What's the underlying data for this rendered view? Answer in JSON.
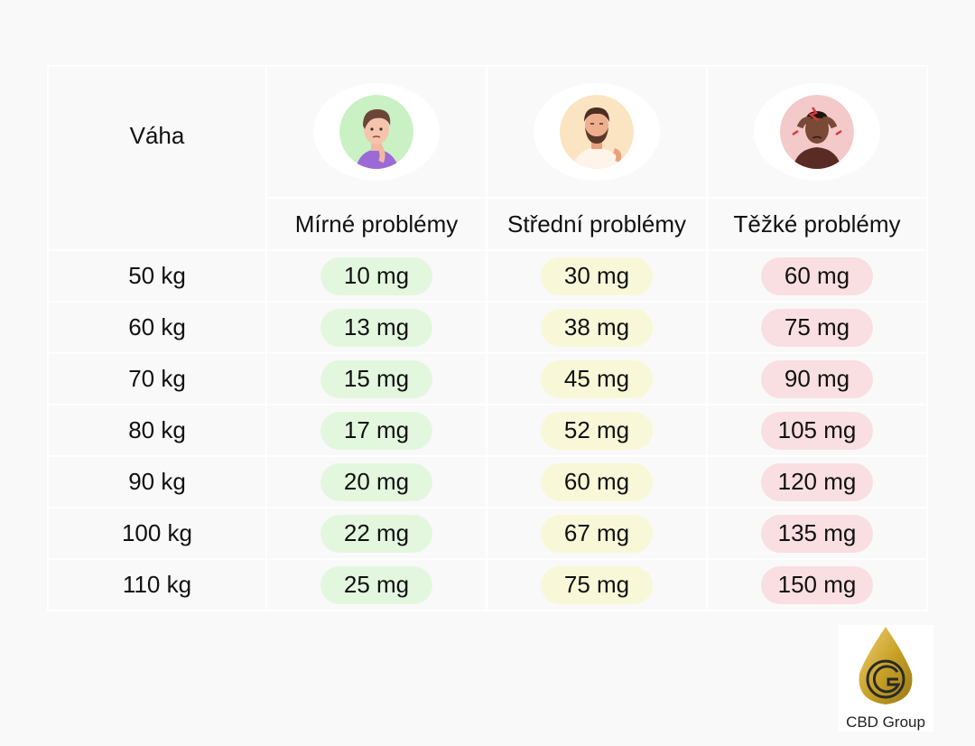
{
  "header": {
    "weight_label": "Váha",
    "columns": [
      {
        "label": "Mírné problémy",
        "icon": "mild-person-icon",
        "accent": "#e3f7df"
      },
      {
        "label": "Střední problémy",
        "icon": "bearded-man-icon",
        "accent": "#f8f8d8"
      },
      {
        "label": "Těžké problémy",
        "icon": "headache-person-icon",
        "accent": "#f9dfe2"
      }
    ]
  },
  "rows": [
    {
      "weight": "50 kg",
      "mild": "10 mg",
      "medium": "30 mg",
      "severe": "60 mg"
    },
    {
      "weight": "60 kg",
      "mild": "13 mg",
      "medium": "38 mg",
      "severe": "75 mg"
    },
    {
      "weight": "70 kg",
      "mild": "15 mg",
      "medium": "45 mg",
      "severe": "90 mg"
    },
    {
      "weight": "80 kg",
      "mild": "17 mg",
      "medium": "52 mg",
      "severe": "105 mg"
    },
    {
      "weight": "90 kg",
      "mild": "20 mg",
      "medium": "60 mg",
      "severe": "120 mg"
    },
    {
      "weight": "100 kg",
      "mild": "22 mg",
      "medium": "67 mg",
      "severe": "135 mg"
    },
    {
      "weight": "110 kg",
      "mild": "25 mg",
      "medium": "75 mg",
      "severe": "150 mg"
    }
  ],
  "brand": {
    "name": "CBD Group",
    "gold": "#c9a227"
  }
}
